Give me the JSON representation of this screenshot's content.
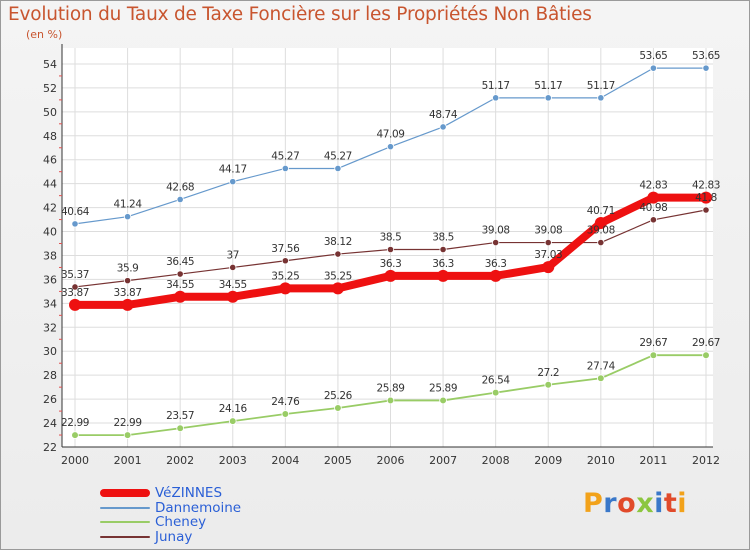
{
  "title": "Evolution du Taux de Taxe Foncière sur les Propriétés Non Bâties",
  "unit_label": "(en %)",
  "logo_text": "Proxiti",
  "logo_colors": [
    "#f2a21a",
    "#3a78c9",
    "#e14a2a",
    "#8cc63f",
    "#3a78c9",
    "#e14a2a",
    "#f2a21a"
  ],
  "chart_data": {
    "type": "line",
    "x": [
      "2000",
      "2001",
      "2002",
      "2003",
      "2004",
      "2005",
      "2006",
      "2007",
      "2008",
      "2009",
      "2010",
      "2011",
      "2012"
    ],
    "ylim": [
      22,
      55
    ],
    "yticks": [
      22,
      24,
      26,
      28,
      30,
      32,
      34,
      36,
      38,
      40,
      42,
      44,
      46,
      48,
      50,
      52,
      54
    ],
    "grid": true,
    "legend_placement": "bottom-left",
    "series": [
      {
        "name": "VéZINNES",
        "color": "#ee1111",
        "values": [
          33.87,
          33.87,
          34.55,
          34.55,
          35.25,
          35.25,
          36.3,
          36.3,
          36.3,
          37.03,
          40.71,
          42.83,
          42.83
        ],
        "labels": [
          "33.87",
          "33.87",
          "34.55",
          "34.55",
          "35.25",
          "35.25",
          "36.3",
          "36.3",
          "36.3",
          "37.03",
          "40.71",
          "42.83",
          "42.83"
        ]
      },
      {
        "name": "Dannemoine",
        "color": "#6699cc",
        "values": [
          40.64,
          41.24,
          42.68,
          44.17,
          45.27,
          45.27,
          47.09,
          48.74,
          51.17,
          51.17,
          51.17,
          53.65,
          53.65
        ],
        "labels": [
          "40.64",
          "41.24",
          "42.68",
          "44.17",
          "45.27",
          "45.27",
          "47.09",
          "48.74",
          "51.17",
          "51.17",
          "51.17",
          "53.65",
          "53.65"
        ]
      },
      {
        "name": "Cheney",
        "color": "#99cc66",
        "values": [
          22.99,
          22.99,
          23.57,
          24.16,
          24.76,
          25.26,
          25.89,
          25.89,
          26.54,
          27.2,
          27.74,
          29.67,
          29.67
        ],
        "labels": [
          "22.99",
          "22.99",
          "23.57",
          "24.16",
          "24.76",
          "25.26",
          "25.89",
          "25.89",
          "26.54",
          "27.2",
          "27.74",
          "29.67",
          "29.67"
        ]
      },
      {
        "name": "Junay",
        "color": "#773333",
        "values": [
          35.37,
          35.9,
          36.45,
          37,
          37.56,
          38.12,
          38.5,
          38.5,
          39.08,
          39.08,
          39.08,
          40.98,
          41.8
        ],
        "labels": [
          "35.37",
          "35.9",
          "36.45",
          "37",
          "37.56",
          "38.12",
          "38.5",
          "38.5",
          "39.08",
          "39.08",
          "39.08",
          "40.98",
          "41.8"
        ]
      }
    ]
  }
}
